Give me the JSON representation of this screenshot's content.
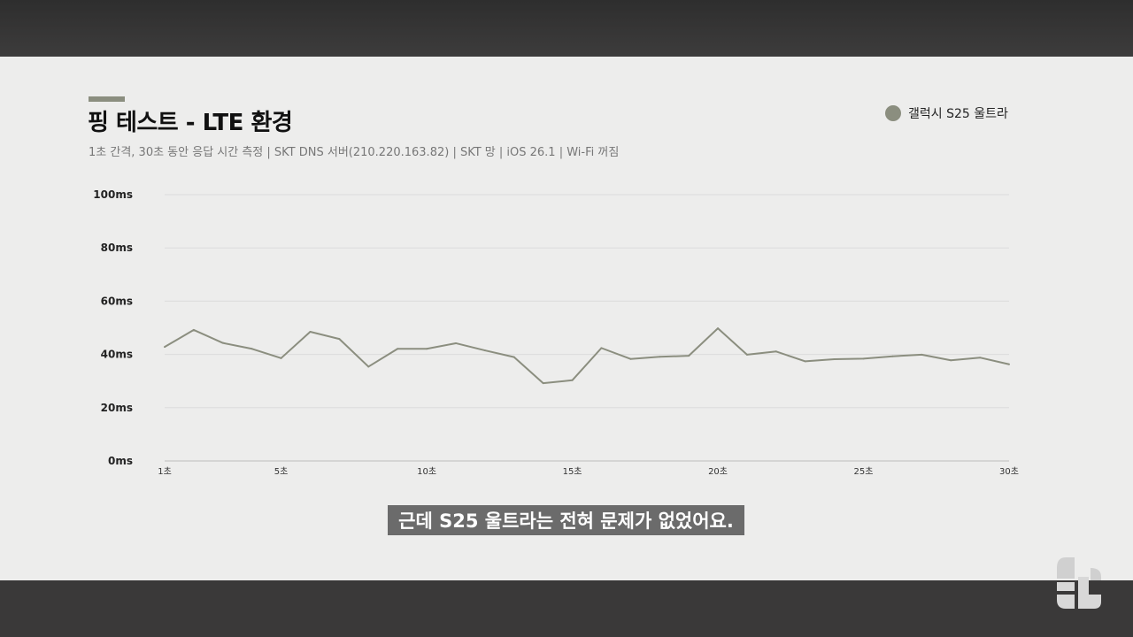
{
  "video_frame": {
    "caption": "근데 S25 울트라는 전혀 문제가 없었어요.",
    "logo_icon": "channel-logo"
  },
  "chart_data": {
    "type": "line",
    "title": "핑 테스트 - LTE 환경",
    "subtitle": "1초 간격, 30초 동안 응답 시간 측정 | SKT DNS 서버(210.220.163.82) | SKT 망 | iOS 26.1 | Wi-Fi 꺼짐",
    "xlabel": "",
    "ylabel": "",
    "x": [
      1,
      2,
      3,
      4,
      5,
      6,
      7,
      8,
      9,
      10,
      11,
      12,
      13,
      14,
      15,
      16,
      17,
      18,
      19,
      20,
      21,
      22,
      23,
      24,
      25,
      26,
      27,
      28,
      29,
      30
    ],
    "x_ticks": [
      1,
      5,
      10,
      15,
      20,
      25,
      30
    ],
    "x_tick_labels": [
      "1초",
      "5초",
      "10초",
      "15초",
      "20초",
      "25초",
      "30초"
    ],
    "ylim": [
      0,
      100
    ],
    "y_ticks": [
      0,
      20,
      40,
      60,
      80,
      100
    ],
    "y_tick_labels": [
      "0ms",
      "20ms",
      "40ms",
      "60ms",
      "80ms",
      "100ms"
    ],
    "grid": "horizontal",
    "legend_position": "top-right",
    "series": [
      {
        "name": "갤럭시 S25 울트라",
        "color": "#8b8e7f",
        "values": [
          42.8,
          49.2,
          44.3,
          42.1,
          38.6,
          48.5,
          45.8,
          35.4,
          42.1,
          42.1,
          44.2,
          41.5,
          39.0,
          29.2,
          30.3,
          42.4,
          38.3,
          39.1,
          39.5,
          49.8,
          39.9,
          41.1,
          37.4,
          38.2,
          38.4,
          39.3,
          39.9,
          37.8,
          38.8,
          36.3
        ]
      }
    ]
  }
}
